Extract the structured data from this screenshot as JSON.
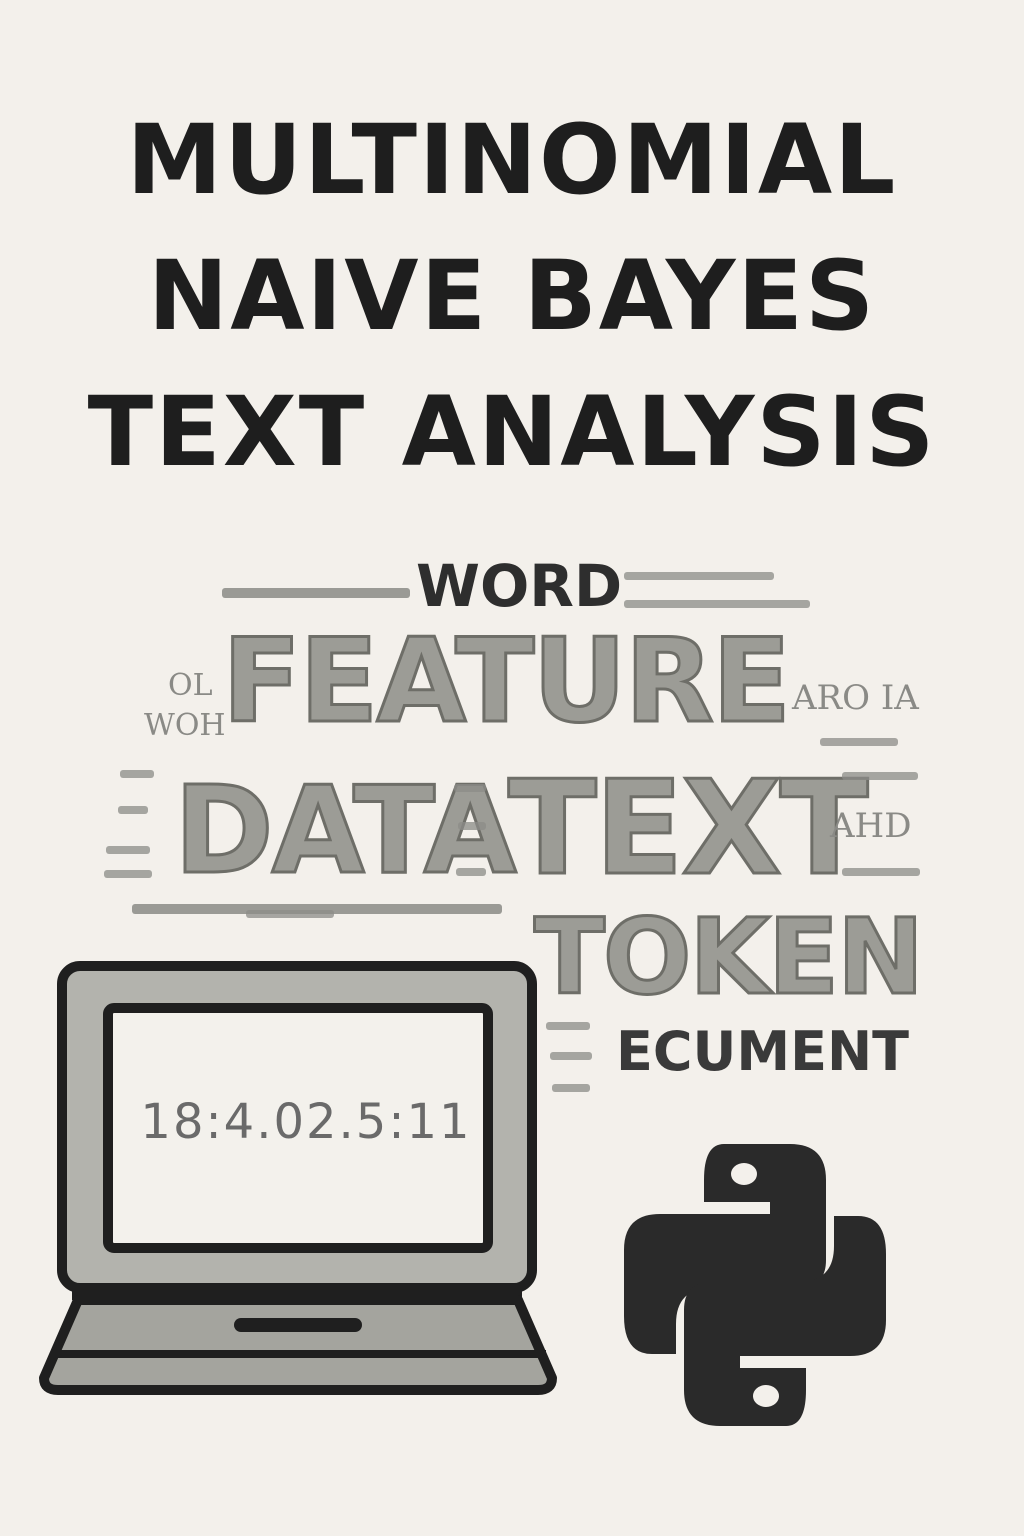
{
  "title": {
    "line1": "MULTINOMIAL",
    "line2": "NAIVE BAYES",
    "line3": "TEXT ANALYSIS"
  },
  "word_cloud": {
    "word": "WORD",
    "feature": "FEATURE",
    "data": "DATA",
    "text": "TEXT",
    "token": "TOKEN",
    "ecument": "ECUMENT",
    "small": {
      "s1": "OL",
      "s2": "WOH",
      "s3": "ARO IA",
      "s4": "AHD"
    }
  },
  "laptop": {
    "screen_text": "18:4.02.5:11"
  },
  "icons": {
    "laptop": "laptop-icon",
    "python": "python-logo-icon"
  },
  "colors": {
    "background": "#f3f0eb",
    "title": "#1e1e1e",
    "cloud_gray": "#9c9c96",
    "icon_dark": "#2a2a2a"
  }
}
